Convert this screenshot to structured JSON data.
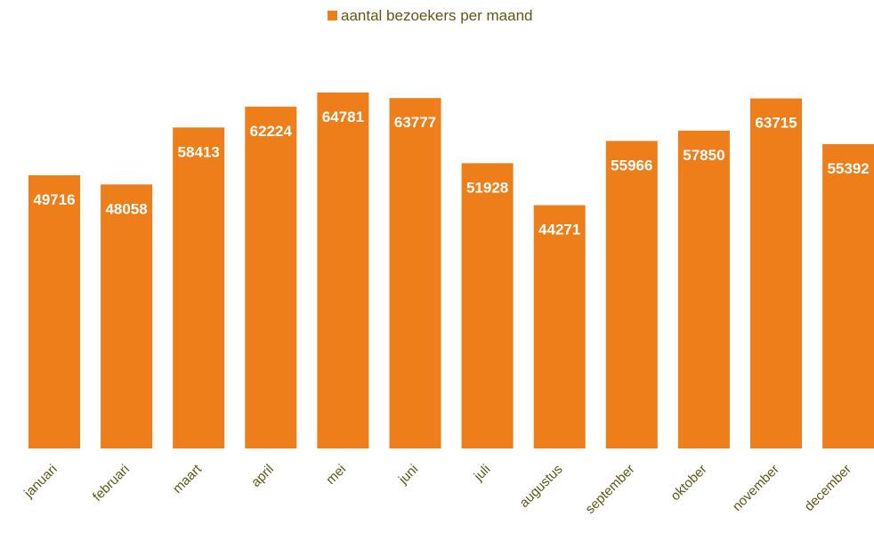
{
  "chart_data": {
    "type": "bar",
    "title": "",
    "xlabel": "",
    "ylabel": "",
    "categories": [
      "januari",
      "februari",
      "maart",
      "april",
      "mei",
      "juni",
      "juli",
      "augustus",
      "september",
      "oktober",
      "november",
      "december"
    ],
    "series": [
      {
        "name": "aantal bezoekers per maand",
        "values": [
          49716,
          48058,
          58413,
          62224,
          64781,
          63777,
          51928,
          44271,
          55966,
          57850,
          63715,
          55392
        ]
      }
    ],
    "ylim": [
      0,
      68000
    ],
    "grid": false,
    "legend": "top-center",
    "data_labels": true,
    "colors": {
      "bar": "#ee7e1a",
      "text": "#5a5a14",
      "label": "#ffffff"
    }
  }
}
